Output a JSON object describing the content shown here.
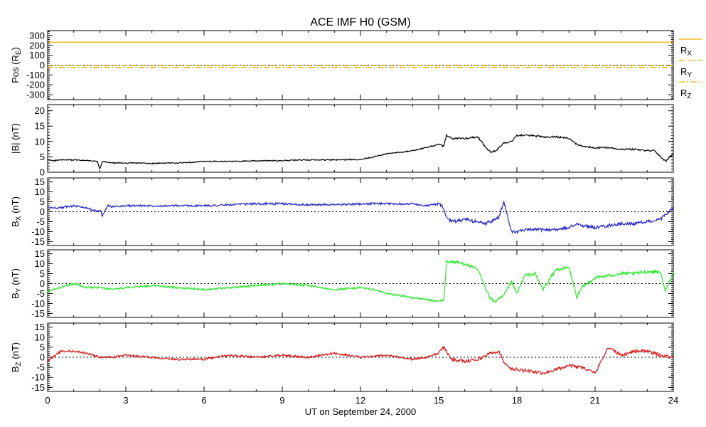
{
  "title": "ACE IMF H0 (GSM)",
  "xlabel": "UT on September 24, 2000",
  "colors": {
    "axis": "#000000",
    "zero_line": "#000000",
    "pos": "#f0b000",
    "b_total": "#000000",
    "bx": "#2020d0",
    "by": "#22ee22",
    "bz": "#e01010"
  },
  "chart_data": [
    {
      "type": "line",
      "id": "pos",
      "ylabel_main": "Pos (R",
      "ylabel_sub": "E",
      "ylabel_end": ")",
      "ylim": [
        -350,
        350
      ],
      "yticks": [
        300,
        200,
        100,
        0,
        -100,
        -200,
        -300
      ],
      "ytick_labels": [
        "300",
        "200",
        "100",
        "0",
        "-100",
        "-200",
        "-300"
      ],
      "zero_line": true,
      "series": [
        {
          "name": "R",
          "name_sub": "X",
          "value": 233,
          "dash": "solid"
        },
        {
          "name": "R",
          "name_sub": "Y",
          "value": -4,
          "dash": "dash"
        },
        {
          "name": "R",
          "name_sub": "Z",
          "value": -24,
          "dash": "dashdot"
        }
      ]
    },
    {
      "type": "line",
      "id": "b_total",
      "ylabel_main": "|B| (nT)",
      "ylim": [
        0,
        22
      ],
      "yticks": [
        20,
        15,
        10,
        5,
        0
      ],
      "ytick_labels": [
        "20",
        "15",
        "10",
        "5",
        "0"
      ],
      "zero_line": false,
      "x": [
        0,
        0.3,
        0.5,
        1,
        1.5,
        1.9,
        2,
        2.1,
        2.5,
        3,
        3.5,
        4,
        4.5,
        5,
        6,
        7,
        8,
        9,
        10,
        11,
        12,
        12.5,
        13,
        13.5,
        14,
        14.5,
        15,
        15.2,
        15.3,
        15.5,
        16,
        16.5,
        16.8,
        17,
        17.2,
        17.5,
        17.8,
        18,
        18.5,
        19,
        19.5,
        20,
        20.3,
        20.5,
        21,
        21.5,
        22,
        22.5,
        23,
        23.3,
        23.5,
        23.7,
        24
      ],
      "y": [
        4,
        3.8,
        4,
        4,
        3.8,
        3.5,
        1,
        3.5,
        3,
        3,
        3,
        2.8,
        3,
        3,
        3.5,
        3.5,
        3.7,
        3.8,
        4,
        4,
        4.2,
        5,
        6,
        6.5,
        7,
        8,
        9,
        8.5,
        12,
        11,
        11,
        11.5,
        8,
        6.5,
        7,
        9.5,
        10,
        12,
        12,
        11.5,
        11.5,
        11,
        9,
        8.5,
        8,
        8,
        7.5,
        7.5,
        7,
        7,
        5,
        3.5,
        6
      ]
    },
    {
      "type": "line",
      "id": "bx",
      "ylabel_main": "B",
      "ylabel_sub": "X",
      "ylabel_end": " (nT)",
      "ylim": [
        -17,
        17
      ],
      "yticks": [
        15,
        10,
        5,
        0,
        -5,
        -10,
        -15
      ],
      "ytick_labels": [
        "15",
        "10",
        "5",
        "0",
        "-5",
        "-10",
        "-15"
      ],
      "zero_line": true,
      "x": [
        0,
        0.5,
        1,
        1.5,
        1.9,
        2,
        2.1,
        2.3,
        2.5,
        3,
        4,
        5,
        6,
        7,
        8,
        9,
        10,
        11,
        12,
        13,
        14,
        14.5,
        15,
        15.2,
        15.3,
        15.5,
        16,
        16.5,
        16.8,
        17,
        17.3,
        17.5,
        17.8,
        18,
        18.5,
        19,
        19.5,
        20,
        20.3,
        20.5,
        21,
        21.5,
        22,
        22.5,
        23,
        23.5,
        24
      ],
      "y": [
        2,
        2,
        3,
        2,
        0,
        1,
        -2,
        3,
        2.5,
        3,
        3,
        3,
        3,
        3.5,
        4,
        4,
        3.5,
        3.5,
        4,
        4,
        4,
        3,
        4,
        2,
        -3,
        -5,
        -4,
        -5,
        -6,
        -5,
        -3,
        5,
        -10,
        -10,
        -9,
        -9,
        -9,
        -8,
        -6,
        -7,
        -8,
        -7,
        -6,
        -6,
        -5,
        -4,
        2
      ]
    },
    {
      "type": "line",
      "id": "by",
      "ylabel_main": "B",
      "ylabel_sub": "Y",
      "ylabel_end": " (nT)",
      "ylim": [
        -17,
        17
      ],
      "yticks": [
        15,
        10,
        5,
        0,
        -5,
        -10,
        -15
      ],
      "ytick_labels": [
        "15",
        "10",
        "5",
        "0",
        "-5",
        "-10",
        "-15"
      ],
      "zero_line": true,
      "x": [
        0,
        0.5,
        1,
        1.5,
        2,
        2.5,
        3,
        4,
        5,
        6,
        7,
        8,
        9,
        10,
        11,
        12,
        12.5,
        13,
        13.5,
        14,
        14.5,
        15,
        15.2,
        15.3,
        15.5,
        16,
        16.5,
        17,
        17.2,
        17.5,
        17.8,
        18,
        18.3,
        18.7,
        19,
        19.5,
        20,
        20.3,
        20.5,
        21,
        21.5,
        22,
        22.5,
        23,
        23.5,
        23.7,
        24
      ],
      "y": [
        -4,
        -2,
        0,
        -2,
        -2,
        -3,
        -2,
        -1,
        -2,
        -3,
        -2,
        -1,
        0,
        -1,
        -3,
        -2,
        -3,
        -5,
        -6,
        -7,
        -8,
        -9,
        -8,
        11,
        11,
        10,
        7,
        -8,
        -9,
        -6,
        1,
        -5,
        4,
        5,
        -3,
        7,
        8,
        -7,
        -2,
        3,
        4,
        5,
        5,
        6,
        6,
        -4,
        6
      ]
    },
    {
      "type": "line",
      "id": "bz",
      "ylabel_main": "B",
      "ylabel_sub": "Z",
      "ylabel_end": " (nT)",
      "ylim": [
        -17,
        17
      ],
      "yticks": [
        15,
        10,
        5,
        0,
        -5,
        -10,
        -15
      ],
      "ytick_labels": [
        "15",
        "10",
        "5",
        "0",
        "-5",
        "-10",
        "-15"
      ],
      "zero_line": true,
      "x": [
        0,
        0.5,
        1,
        1.5,
        2,
        2.5,
        3,
        4,
        5,
        6,
        7,
        8,
        9,
        10,
        11,
        12,
        13,
        14,
        14.5,
        15,
        15.2,
        15.5,
        16,
        16.5,
        17,
        17.3,
        17.5,
        17.8,
        18,
        18.5,
        19,
        19.5,
        20,
        20.5,
        21,
        21.5,
        22,
        22.5,
        23,
        23.5,
        24
      ],
      "y": [
        -2,
        3,
        3,
        2,
        0,
        0,
        1,
        0,
        -1,
        -1,
        1,
        0,
        1,
        0,
        2,
        0,
        1,
        -1,
        0,
        2,
        5,
        -1,
        -2,
        -1,
        2,
        3,
        -2,
        -6,
        -6,
        -7,
        -8,
        -6,
        -4,
        -5,
        -8,
        5,
        1,
        3,
        3,
        1,
        0
      ]
    }
  ],
  "x_axis": {
    "range": [
      0,
      24
    ],
    "ticks": [
      0,
      3,
      6,
      9,
      12,
      15,
      18,
      21,
      24
    ],
    "tick_labels": [
      "0",
      "3",
      "6",
      "9",
      "12",
      "15",
      "18",
      "21",
      "24"
    ]
  }
}
